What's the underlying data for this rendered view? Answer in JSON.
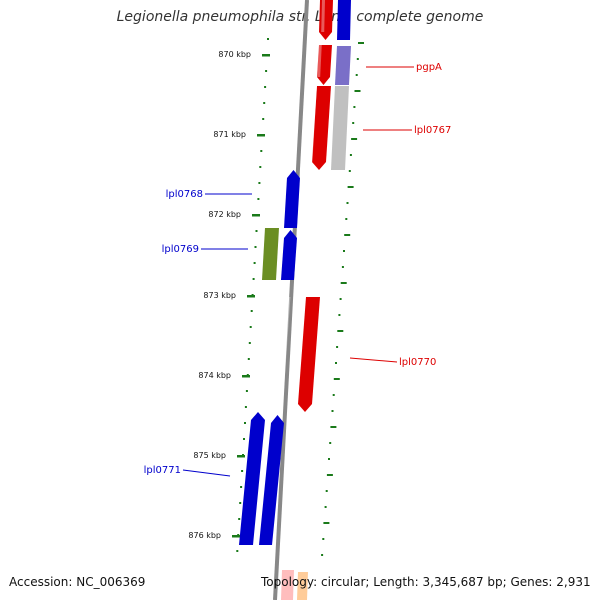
{
  "title": "Legionella pneumophila str. Lens, complete genome",
  "footer": {
    "accession": "Accession: NC_006369",
    "stats": "Topology: circular; Length: 3,345,687 bp; Genes: 2,931"
  },
  "ruler": {
    "unit": "kbp",
    "ticks": [
      {
        "label": "870 kbp"
      },
      {
        "label": "871 kbp"
      },
      {
        "label": "872 kbp"
      },
      {
        "label": "873 kbp"
      },
      {
        "label": "874 kbp"
      },
      {
        "label": "875 kbp"
      },
      {
        "label": "876 kbp"
      }
    ]
  },
  "genes": [
    {
      "name": "pgpA",
      "strand": "forward",
      "color": "#dd0000"
    },
    {
      "name": "lpl0767",
      "strand": "forward",
      "color": "#dd0000"
    },
    {
      "name": "lpl0768",
      "strand": "reverse",
      "color": "#0000cc"
    },
    {
      "name": "lpl0769",
      "strand": "reverse",
      "color": "#0000cc"
    },
    {
      "name": "lpl0770",
      "strand": "forward",
      "color": "#dd0000"
    },
    {
      "name": "lpl0771",
      "strand": "reverse",
      "color": "#0000cc"
    }
  ],
  "colors": {
    "forward": "#dd0000",
    "reverse": "#0000cc",
    "backbone": "#888888",
    "ruler_ticks": "#1a7a1a",
    "olive_block": "#6b8e23",
    "purple_block": "#7a6fc8",
    "grey_block": "#c0c0c0"
  }
}
